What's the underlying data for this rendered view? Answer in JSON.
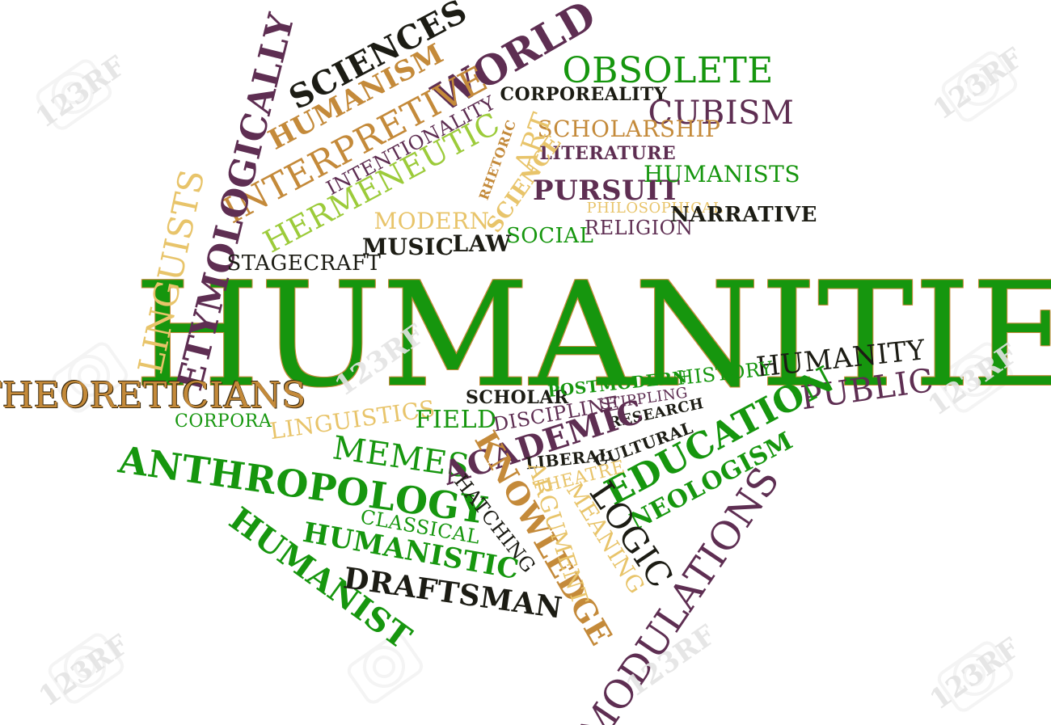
{
  "colors": {
    "green": "#16960e",
    "dark": "#1c1c14",
    "purple": "#5e2e52",
    "tan": "#c48a3a",
    "gold": "#e8c46a",
    "lime": "#9ccb3a",
    "watermark": "#e4e4e4"
  },
  "words": {
    "humanities": "HUMANITIES",
    "sciences": "SCIENCES",
    "world": "WORLD",
    "obsolete": "OBSOLETE",
    "humanism": "HUMANISM",
    "corporeality": "CORPOREALITY",
    "cubism": "CUBISM",
    "interpretive": "INTERPRETIVE",
    "intentionality": "INTENTIONALITY",
    "scholarship": "SCHOLARSHIP",
    "art": "ART",
    "rhetoric": "RHETORIC",
    "literature": "LITERATURE",
    "etymologically": "ETYMOLOGICALLY",
    "hermeneutic": "HERMENEUTIC",
    "science": "SCIENCE",
    "pursuit": "PURSUIT",
    "humanists": "HUMANISTS",
    "philosophical": "PHILOSOPHICAL",
    "modern": "MODERN",
    "religion": "RELIGION",
    "narrative": "NARRATIVE",
    "linguists": "LINGUISTS",
    "stagecraft": "STAGECRAFT",
    "music": "MUSIC",
    "law": "LAW",
    "social": "SOCIAL",
    "humanity": "HUMANITY",
    "history": "HISTORY",
    "theoreticians": "THEORETICIANS",
    "scholar": "SCHOLAR",
    "postmodern": "POSTMODERN",
    "stippling": "STIPPLING",
    "public": "PUBLIC",
    "corpora": "CORPORA",
    "linguistics": "LINGUISTICS",
    "field": "FIELD",
    "discipline": "DISCIPLINE",
    "research": "RESEARCH",
    "education": "EDUCATION",
    "memes": "MEMES",
    "academic": "ACADEMIC",
    "cultural": "CULTURAL",
    "liberal": "LIBERAL",
    "neologism": "NEOLOGISM",
    "anthropology": "ANTHROPOLOGY",
    "theatre": "THEATRE",
    "hatching": "HATCHING",
    "knowledge": "KNOWLEDGE",
    "argument": "ARGUMENT",
    "meaning": "MEANING",
    "logic": "LOGIC",
    "classical": "CLASSICAL",
    "humanistic": "HUMANISTIC",
    "humanist": "HUMANIST",
    "draftsman": "DRAFTSMAN",
    "modulations": "MODULATIONS"
  },
  "watermark": {
    "text": "123RF"
  }
}
